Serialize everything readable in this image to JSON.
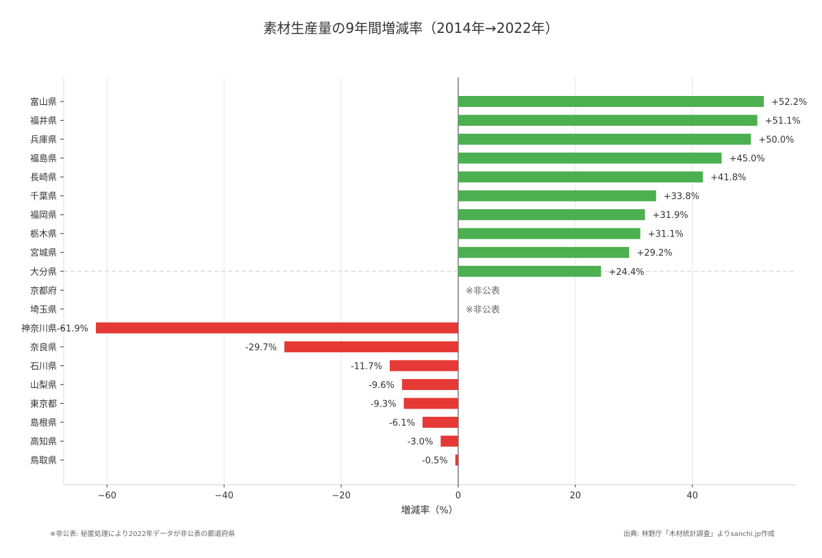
{
  "chart_data": {
    "type": "bar",
    "orientation": "horizontal",
    "title": "素材生産量の9年間増減率（2014年→2022年）",
    "xlabel": "増減率（%）",
    "ylabel": "",
    "xlim": [
      -67.4,
      57.7
    ],
    "xticks": [
      -60,
      -40,
      -20,
      0,
      20,
      40
    ],
    "xtick_labels": [
      "−60",
      "−40",
      "−20",
      "0",
      "20",
      "40"
    ],
    "grid": "vertical",
    "categories": [
      "富山県",
      "福井県",
      "兵庫県",
      "福島県",
      "長崎県",
      "千葉県",
      "福岡県",
      "栃木県",
      "宮城県",
      "大分県",
      "京都府",
      "埼玉県",
      "神奈川県",
      "奈良県",
      "石川県",
      "山梨県",
      "東京都",
      "島根県",
      "高知県",
      "鳥取県"
    ],
    "values": [
      52.2,
      51.1,
      50.0,
      45.0,
      41.8,
      33.8,
      31.9,
      31.1,
      29.2,
      24.4,
      null,
      null,
      -61.9,
      -29.7,
      -11.7,
      -9.6,
      -9.3,
      -6.1,
      -3.0,
      -0.5
    ],
    "data_labels": [
      "+52.2%",
      "+51.1%",
      "+50.0%",
      "+45.0%",
      "+41.8%",
      "+33.8%",
      "+31.9%",
      "+31.1%",
      "+29.2%",
      "+24.4%",
      "※非公表",
      "※非公表",
      "-61.9%",
      "-29.7%",
      "-11.7%",
      "-9.6%",
      "-9.3%",
      "-6.1%",
      "-3.0%",
      "-0.5%"
    ],
    "colors": {
      "positive": "#4caf50",
      "negative": "#e53935",
      "undisclosed_text": "#666666"
    },
    "separator_after": "大分県",
    "footnote": "※非公表: 秘匿処理により2022年データが非公表の都道府県",
    "source": "出典: 林野庁「木材統計調査」よりsanchi.jp作成"
  }
}
